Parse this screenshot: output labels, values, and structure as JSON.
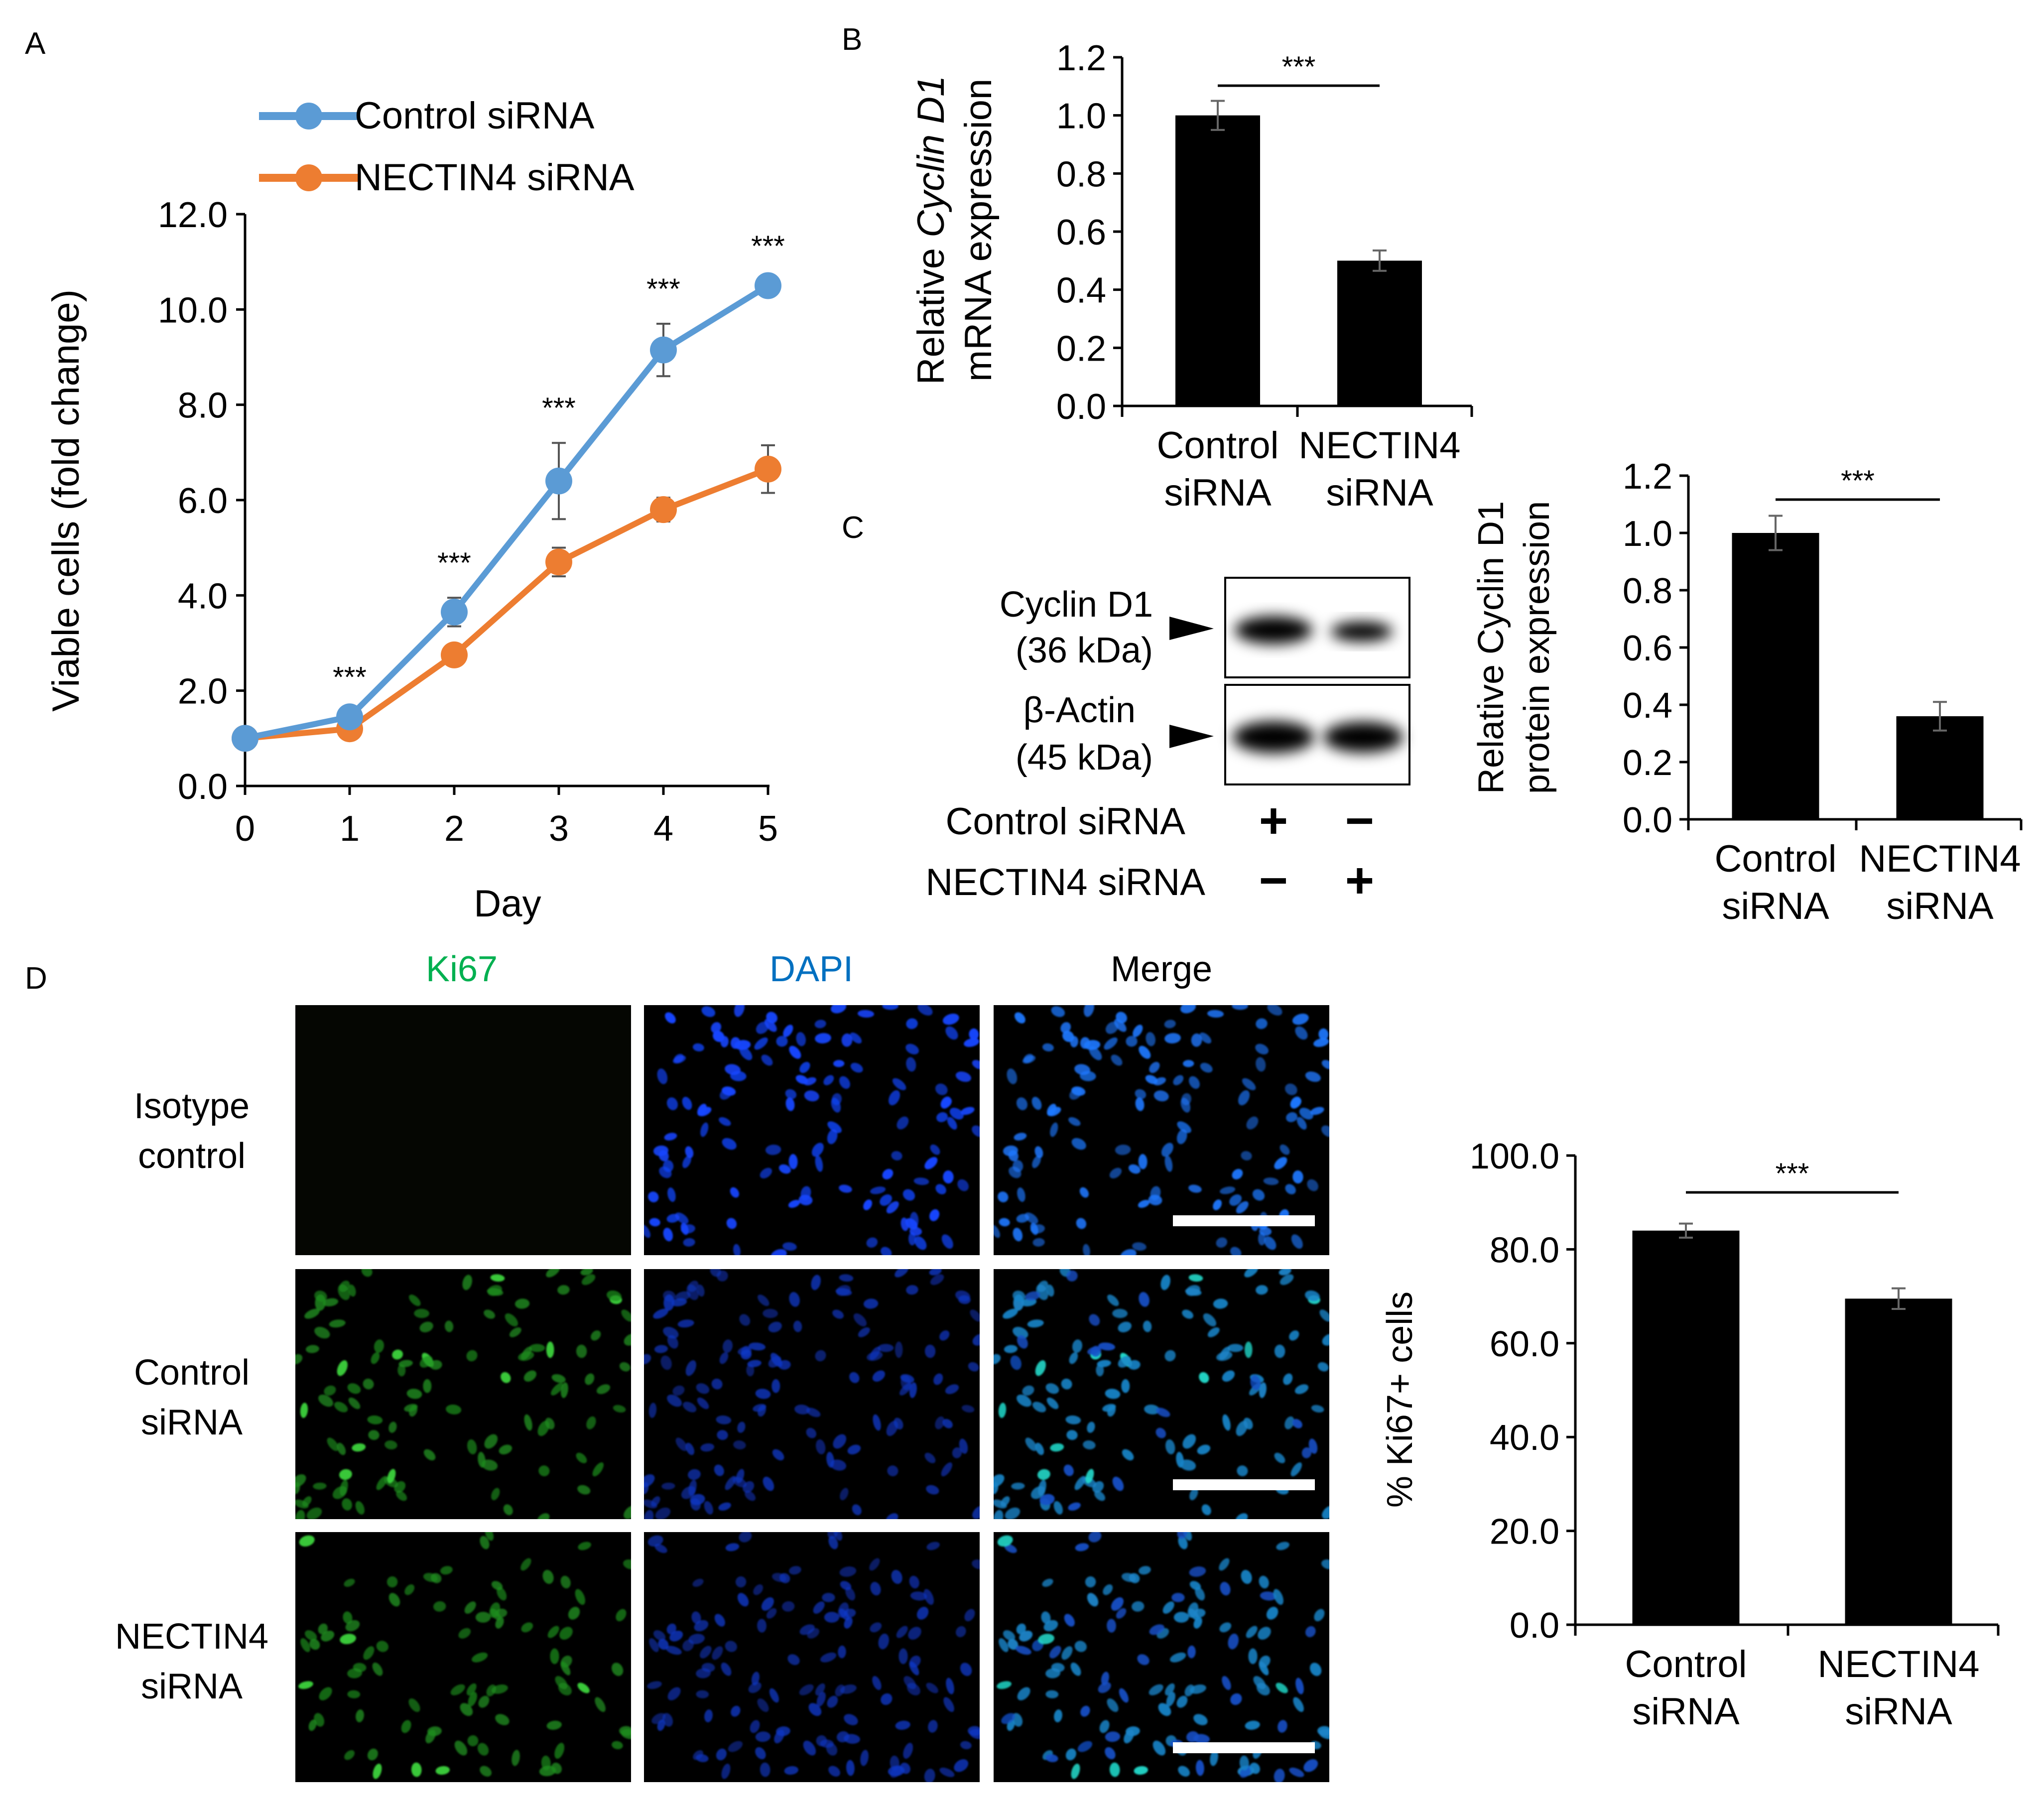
{
  "panel_letters": {
    "a": "A",
    "b": "B",
    "c": "C",
    "d": "D"
  },
  "colors": {
    "control": "#5B9BD5",
    "nectin4": "#ED7D31",
    "bar": "#000000",
    "ki67": "#00b050",
    "dapi": "#0070c0"
  },
  "chart_data": [
    {
      "id": "A",
      "type": "line",
      "xlabel": "Day",
      "ylabel": "Viable cells (fold change)",
      "x": [
        0,
        1,
        2,
        3,
        4,
        5
      ],
      "xticks": [
        "0",
        "1",
        "2",
        "3",
        "4",
        "5"
      ],
      "ylim": [
        0,
        12
      ],
      "yticks": [
        "0.0",
        "2.0",
        "4.0",
        "6.0",
        "8.0",
        "10.0",
        "12.0"
      ],
      "series": [
        {
          "name": "Control siRNA",
          "values": [
            1.0,
            1.45,
            3.65,
            6.4,
            9.15,
            10.5
          ],
          "errors": [
            0.05,
            0.1,
            0.3,
            0.8,
            0.55,
            0.1
          ]
        },
        {
          "name": "NECTIN4 siRNA",
          "values": [
            1.0,
            1.2,
            2.75,
            4.7,
            5.8,
            6.65
          ],
          "errors": [
            0.05,
            0.1,
            0.15,
            0.3,
            0.25,
            0.5
          ]
        }
      ],
      "significance": [
        "***",
        "***",
        "***",
        "***",
        "***"
      ]
    },
    {
      "id": "B",
      "type": "bar",
      "ylabel_line1_pre": "Relative ",
      "ylabel_line1_italic": "Cyclin D1",
      "ylabel_line2": "mRNA expression",
      "categories": [
        [
          "Control",
          "siRNA"
        ],
        [
          "NECTIN4",
          "siRNA"
        ]
      ],
      "values": [
        1.0,
        0.5
      ],
      "errors": [
        0.05,
        0.035
      ],
      "ylim": [
        0,
        1.2
      ],
      "yticks": [
        "0.0",
        "0.2",
        "0.4",
        "0.6",
        "0.8",
        "1.0",
        "1.2"
      ],
      "significance": "***"
    },
    {
      "id": "C",
      "type": "bar",
      "ylabel_line1": "Relative Cyclin D1",
      "ylabel_line2": "protein expression",
      "categories": [
        [
          "Control",
          "siRNA"
        ],
        [
          "NECTIN4",
          "siRNA"
        ]
      ],
      "values": [
        1.0,
        0.36
      ],
      "errors": [
        0.06,
        0.05
      ],
      "ylim": [
        0,
        1.2
      ],
      "yticks": [
        "0.0",
        "0.2",
        "0.4",
        "0.6",
        "0.8",
        "1.0",
        "1.2"
      ],
      "significance": "***"
    },
    {
      "id": "D",
      "type": "bar",
      "ylabel": "% Ki67+ cells",
      "categories": [
        [
          "Control",
          "siRNA"
        ],
        [
          "NECTIN4",
          "siRNA"
        ]
      ],
      "values": [
        84.0,
        69.5
      ],
      "errors": [
        1.5,
        2.2
      ],
      "ylim": [
        0,
        100
      ],
      "yticks": [
        "0.0",
        "20.0",
        "40.0",
        "60.0",
        "80.0",
        "100.0"
      ],
      "significance": "***"
    }
  ],
  "western_blot": {
    "bands": [
      {
        "line1": "Cyclin D1",
        "line2": "(36 kDa)",
        "intensity": [
          1.0,
          0.36
        ]
      },
      {
        "line1": "β-Actin",
        "line2": "(45 kDa)",
        "intensity": [
          1.0,
          0.95
        ]
      }
    ],
    "conditions": [
      {
        "label": "Control siRNA",
        "lane1": "+",
        "lane2": "−"
      },
      {
        "label": "NECTIN4 siRNA",
        "lane1": "−",
        "lane2": "+"
      }
    ]
  },
  "microscopy": {
    "columns": [
      "Ki67",
      "DAPI",
      "Merge"
    ],
    "rows": [
      [
        "Isotype",
        "control"
      ],
      [
        "Control",
        "siRNA"
      ],
      [
        "NECTIN4",
        "siRNA"
      ]
    ]
  }
}
